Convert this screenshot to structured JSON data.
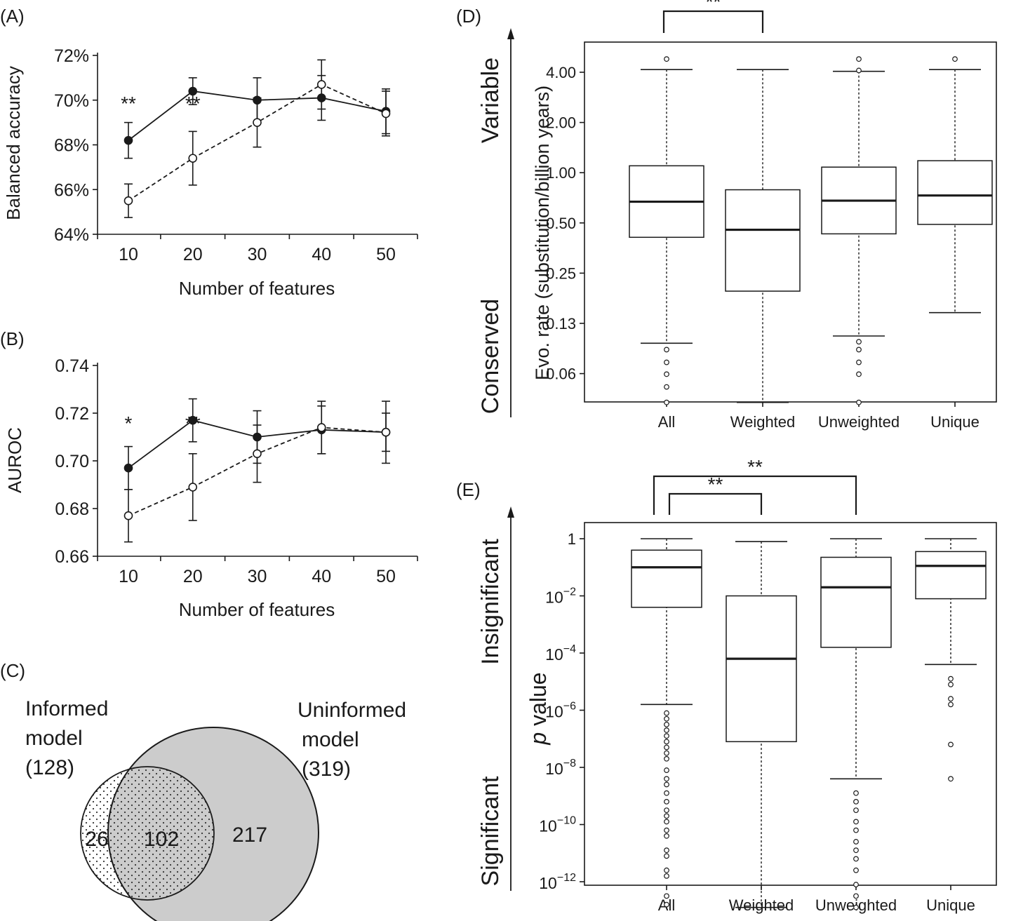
{
  "chart_data": [
    {
      "panel": "(A)",
      "type": "line",
      "xlabel": "Number of features",
      "ylabel": "Balanced accuracy",
      "x": [
        10,
        20,
        30,
        40,
        50
      ],
      "ylim": [
        64,
        72
      ],
      "yticks": [
        "64%",
        "66%",
        "68%",
        "70%",
        "72%"
      ],
      "series": [
        {
          "style": "solid",
          "marker": "filled",
          "values": [
            68.2,
            70.4,
            70.0,
            70.1,
            69.5
          ],
          "err": [
            0.8,
            0.6,
            1.0,
            1.0,
            1.0
          ]
        },
        {
          "style": "dashed",
          "marker": "open",
          "values": [
            65.5,
            67.4,
            69.0,
            70.7,
            69.4
          ],
          "err": [
            0.75,
            1.2,
            1.1,
            1.1,
            1.0
          ]
        }
      ],
      "significance": [
        {
          "x": 10,
          "label": "**"
        },
        {
          "x": 20,
          "label": "**"
        }
      ]
    },
    {
      "panel": "(B)",
      "type": "line",
      "xlabel": "Number of features",
      "ylabel": "AUROC",
      "x": [
        10,
        20,
        30,
        40,
        50
      ],
      "ylim": [
        0.66,
        0.74
      ],
      "yticks": [
        "0.66",
        "0.68",
        "0.70",
        "0.72",
        "0.74"
      ],
      "series": [
        {
          "style": "solid",
          "marker": "filled",
          "values": [
            0.697,
            0.717,
            0.71,
            0.713,
            0.712
          ],
          "err": [
            0.009,
            0.009,
            0.011,
            0.01,
            0.013
          ]
        },
        {
          "style": "dashed",
          "marker": "open",
          "values": [
            0.677,
            0.689,
            0.703,
            0.714,
            0.712
          ],
          "err": [
            0.011,
            0.014,
            0.012,
            0.011,
            0.008
          ]
        }
      ],
      "significance": [
        {
          "x": 10,
          "label": "*"
        },
        {
          "x": 20,
          "label": "**"
        }
      ]
    },
    {
      "panel": "(C)",
      "type": "venn",
      "sets": [
        {
          "label_line1": "Informed",
          "label_line2": "model",
          "label_line3": "(128)",
          "size": 128,
          "only": "26"
        },
        {
          "label_line1": "Uninformed",
          "label_line2": "model",
          "label_line3": "(319)",
          "size": 319,
          "only": "217"
        }
      ],
      "overlap": "102"
    },
    {
      "panel": "(D)",
      "type": "box",
      "ylabel": "Evo. rate (substitution/billion years)",
      "scale": "log2",
      "yticks": [
        "0.06",
        "0.13",
        "0.25",
        "0.50",
        "1.00",
        "2.00",
        "4.00"
      ],
      "categories": [
        "All",
        "Weighted",
        "Unweighted",
        "Unique"
      ],
      "boxes": [
        {
          "lw": 0.095,
          "q1": 0.41,
          "med": 0.67,
          "q3": 1.1,
          "uw": 4.15,
          "outliers": [
            0.042,
            0.052,
            0.062,
            0.073,
            0.087,
            4.8
          ]
        },
        {
          "lw": 0.042,
          "q1": 0.195,
          "med": 0.455,
          "q3": 0.79,
          "uw": 4.15,
          "outliers": []
        },
        {
          "lw": 0.105,
          "q1": 0.43,
          "med": 0.68,
          "q3": 1.08,
          "uw": 4.05,
          "outliers": [
            0.042,
            0.062,
            0.073,
            0.087,
            0.097,
            4.1,
            4.8
          ]
        },
        {
          "lw": 0.145,
          "q1": 0.49,
          "med": 0.73,
          "q3": 1.18,
          "uw": 4.15,
          "outliers": [
            4.8
          ]
        }
      ],
      "direction_top": "Variable",
      "direction_bottom": "Conserved",
      "significance": [
        {
          "from": "All",
          "to": "Weighted",
          "label": "**"
        }
      ]
    },
    {
      "panel": "(E)",
      "type": "box",
      "ylabel_italic": "p",
      "ylabel_rest": " value",
      "scale": "log10",
      "ytick_labels": [
        {
          "exp": 0,
          "base": "1",
          "sup": ""
        },
        {
          "exp": -2,
          "base": "10",
          "sup": "−2"
        },
        {
          "exp": -4,
          "base": "10",
          "sup": "−4"
        },
        {
          "exp": -6,
          "base": "10",
          "sup": "−6"
        },
        {
          "exp": -8,
          "base": "10",
          "sup": "−8"
        },
        {
          "exp": -10,
          "base": "10",
          "sup": "−10"
        },
        {
          "exp": -12,
          "base": "10",
          "sup": "−12"
        }
      ],
      "categories": [
        "All",
        "Weighted",
        "Unweighted",
        "Unique"
      ],
      "boxes": [
        {
          "lw_exp": -5.8,
          "q1_exp": -2.4,
          "med_exp": -1.0,
          "q3_exp": -0.4,
          "uw_exp": 0.0,
          "outliers_exp": [
            -6.1,
            -6.3,
            -6.5,
            -6.7,
            -6.9,
            -7.1,
            -7.3,
            -7.5,
            -7.7,
            -8.1,
            -8.4,
            -8.6,
            -8.9,
            -9.2,
            -9.5,
            -9.7,
            -9.9,
            -10.2,
            -10.4,
            -10.9,
            -11.1,
            -11.6,
            -11.8,
            -12.5,
            -12.8
          ]
        },
        {
          "lw_exp": -12.9,
          "q1_exp": -7.1,
          "med_exp": -4.2,
          "q3_exp": -2.0,
          "uw_exp": -0.1,
          "outliers_exp": []
        },
        {
          "lw_exp": -8.4,
          "q1_exp": -3.8,
          "med_exp": -1.7,
          "q3_exp": -0.65,
          "uw_exp": 0.0,
          "outliers_exp": [
            -8.9,
            -9.2,
            -9.5,
            -9.9,
            -10.2,
            -10.6,
            -10.9,
            -11.2,
            -11.6,
            -12.1,
            -12.5,
            -12.9
          ]
        },
        {
          "lw_exp": -4.4,
          "q1_exp": -2.1,
          "med_exp": -0.95,
          "q3_exp": -0.45,
          "uw_exp": 0.0,
          "outliers_exp": [
            -4.9,
            -5.1,
            -5.6,
            -5.8,
            -7.2,
            -8.4
          ]
        }
      ],
      "direction_top": "Insignificant",
      "direction_bottom": "Significant",
      "significance": [
        {
          "from": "All",
          "to": "Weighted",
          "label": "**"
        },
        {
          "from": "All",
          "to": "Unweighted",
          "label": "**"
        }
      ]
    }
  ]
}
